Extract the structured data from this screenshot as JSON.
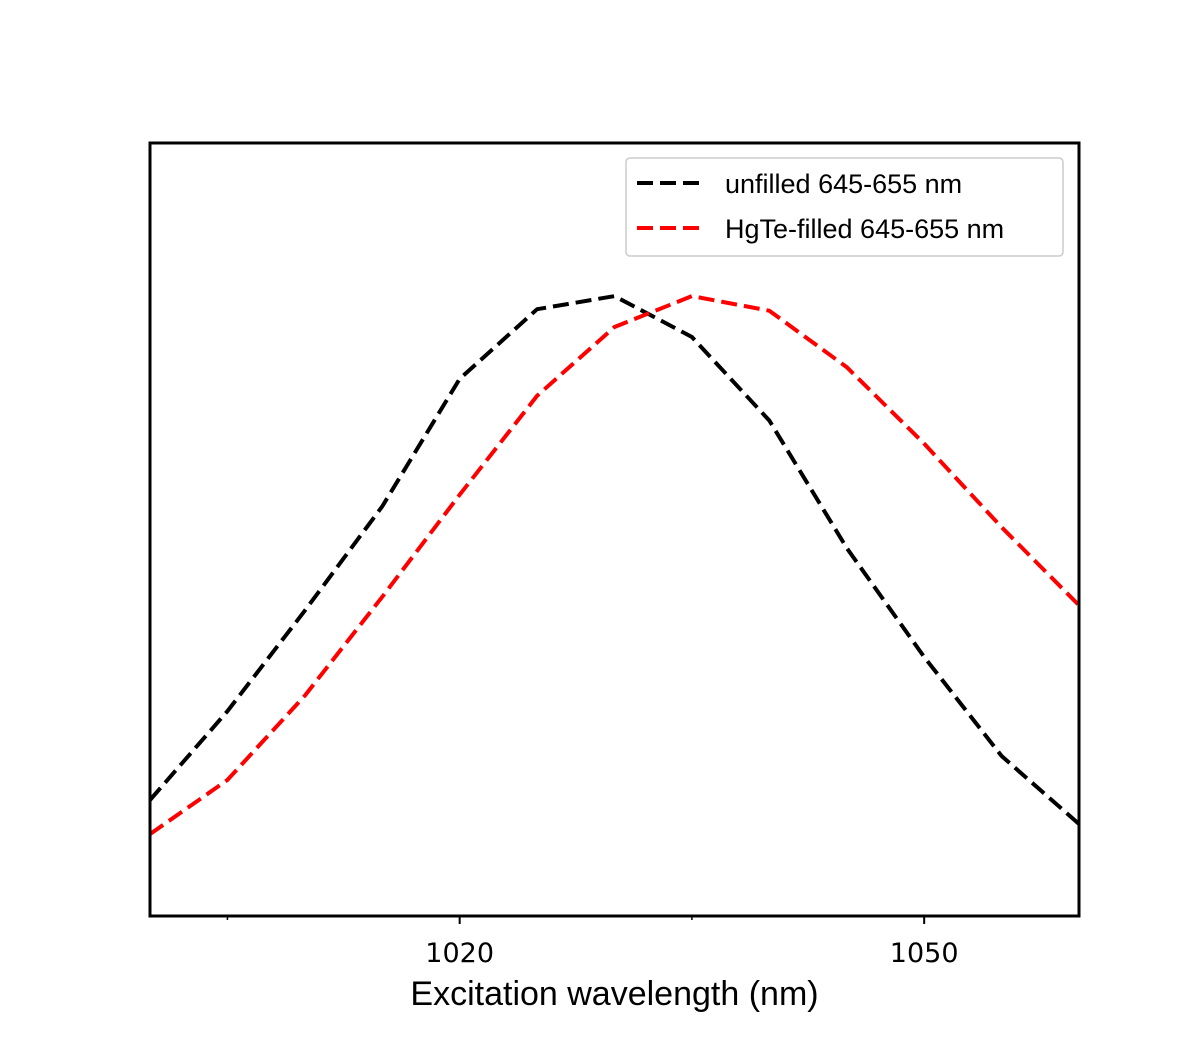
{
  "chart_data": {
    "type": "line",
    "title": "",
    "xlabel": "Excitation wavelength (nm)",
    "ylabel": "",
    "xlim": [
      1000,
      1060
    ],
    "ylim": [
      0,
      1
    ],
    "x_ticks": [
      1020,
      1050
    ],
    "x_minor_ticks": [
      1005,
      1035
    ],
    "y_ticks_visible": false,
    "grid": false,
    "legend_position": "top-right",
    "series": [
      {
        "name": "unfilled 645-655 nm",
        "color": "#000000",
        "line_style": "dashed",
        "x": [
          1000,
          1005,
          1010,
          1015,
          1020,
          1025,
          1030,
          1035,
          1040,
          1045,
          1050,
          1055,
          1060
        ],
        "y": [
          0.15,
          0.265,
          0.395,
          0.53,
          0.695,
          0.785,
          0.802,
          0.749,
          0.641,
          0.476,
          0.335,
          0.207,
          0.119
        ]
      },
      {
        "name": "HgTe-filled 645-655 nm",
        "color": "#ff0000",
        "line_style": "dashed",
        "x": [
          1000,
          1005,
          1010,
          1015,
          1020,
          1025,
          1030,
          1035,
          1040,
          1045,
          1050,
          1055,
          1060
        ],
        "y": [
          0.106,
          0.176,
          0.285,
          0.413,
          0.545,
          0.673,
          0.762,
          0.802,
          0.783,
          0.71,
          0.611,
          0.503,
          0.402
        ]
      }
    ]
  }
}
